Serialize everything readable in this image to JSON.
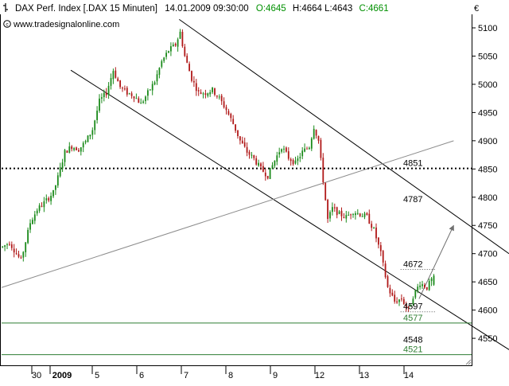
{
  "header": {
    "title": "DAX Perf. Index [.DAX  15 Minuten]",
    "datetime": "14.01.2009 09:30:00",
    "quote_o": "O:4645",
    "quote_hlc": "H:4664 L:4643",
    "quote_c": "C:4661",
    "website": "www.tradesignalonline.com",
    "currency": "€",
    "logo_icon": "tradesignal-logo-icon",
    "copyright_icon": "copyright-icon"
  },
  "colors": {
    "up_candle": "#1a8a1a",
    "down_candle": "#b01818",
    "quote_green": "#009000",
    "channel_lines": "#000000",
    "trend_line": "#8c8c8c",
    "support_lines": "#2e7d32",
    "dotted_level": "#000000"
  },
  "chart_data": {
    "type": "candlestick",
    "title": "DAX Perf. Index [.DAX  15 Minuten]",
    "y_axis": {
      "unit": "€",
      "position": "right",
      "ticks": [
        4550,
        4600,
        4650,
        4700,
        4750,
        4800,
        4850,
        4900,
        4950,
        5000,
        5050,
        5100
      ],
      "range": [
        4510,
        5120
      ]
    },
    "x_axis": {
      "tick_labels": [
        "30",
        "2009",
        "5",
        "6",
        "7",
        "8",
        "9",
        "12",
        "13",
        "14"
      ]
    },
    "grid": false,
    "last_bar": {
      "open": 4645,
      "high": 4664,
      "low": 4643,
      "close": 4661
    },
    "price_path": [
      [
        0,
        4712
      ],
      [
        3,
        4720
      ],
      [
        6,
        4700
      ],
      [
        8,
        4688
      ],
      [
        12,
        4755
      ],
      [
        15,
        4778
      ],
      [
        18,
        4790
      ],
      [
        22,
        4808
      ],
      [
        24,
        4835
      ],
      [
        27,
        4880
      ],
      [
        30,
        4890
      ],
      [
        33,
        4885
      ],
      [
        36,
        4898
      ],
      [
        39,
        4920
      ],
      [
        42,
        4970
      ],
      [
        45,
        4985
      ],
      [
        48,
        5025
      ],
      [
        51,
        4995
      ],
      [
        54,
        4985
      ],
      [
        57,
        4980
      ],
      [
        60,
        4965
      ],
      [
        63,
        4985
      ],
      [
        66,
        5005
      ],
      [
        69,
        5040
      ],
      [
        72,
        5060
      ],
      [
        75,
        5070
      ],
      [
        77,
        5092
      ],
      [
        79,
        5050
      ],
      [
        82,
        5010
      ],
      [
        85,
        4985
      ],
      [
        88,
        4985
      ],
      [
        91,
        4990
      ],
      [
        94,
        4975
      ],
      [
        97,
        4955
      ],
      [
        100,
        4930
      ],
      [
        103,
        4900
      ],
      [
        106,
        4880
      ],
      [
        109,
        4868
      ],
      [
        112,
        4850
      ],
      [
        115,
        4838
      ],
      [
        118,
        4865
      ],
      [
        121,
        4890
      ],
      [
        124,
        4870
      ],
      [
        127,
        4860
      ],
      [
        130,
        4880
      ],
      [
        133,
        4890
      ],
      [
        135,
        4925
      ],
      [
        137,
        4900
      ],
      [
        139,
        4830
      ],
      [
        141,
        4760
      ],
      [
        143,
        4780
      ],
      [
        146,
        4770
      ],
      [
        149,
        4765
      ],
      [
        152,
        4775
      ],
      [
        155,
        4770
      ],
      [
        158,
        4765
      ],
      [
        161,
        4742
      ],
      [
        164,
        4700
      ],
      [
        167,
        4640
      ],
      [
        170,
        4615
      ],
      [
        173,
        4620
      ],
      [
        176,
        4600
      ],
      [
        178,
        4625
      ],
      [
        181,
        4648
      ],
      [
        184,
        4640
      ],
      [
        187,
        4661
      ]
    ],
    "channel_lines": [
      {
        "name": "upper-channel",
        "from": [
          77,
          5115
        ],
        "to": [
          220,
          4700
        ]
      },
      {
        "name": "lower-channel",
        "from": [
          30,
          5025
        ],
        "to": [
          220,
          4530
        ]
      }
    ],
    "trend_line": {
      "from": [
        0,
        4640
      ],
      "to": [
        196,
        4900
      ]
    },
    "forecast_arrow": {
      "from": [
        181,
        4620
      ],
      "to": [
        196,
        4750
      ]
    },
    "levels": [
      {
        "value": 4851,
        "label": "4851",
        "style": "dotted-thick",
        "from": 0
      },
      {
        "value": 4787,
        "label": "4787",
        "style": "none"
      },
      {
        "value": 4672,
        "label": "4672",
        "style": "dotted",
        "from": 173
      },
      {
        "value": 4597,
        "label": "4597",
        "style": "dotted",
        "from": 173
      },
      {
        "value": 4548,
        "label": "4548",
        "style": "none"
      },
      {
        "value": 4577,
        "label": "4577",
        "style": "solid-green",
        "from": 0
      },
      {
        "value": 4521,
        "label": "4521",
        "style": "solid-green",
        "from": 0
      }
    ]
  }
}
